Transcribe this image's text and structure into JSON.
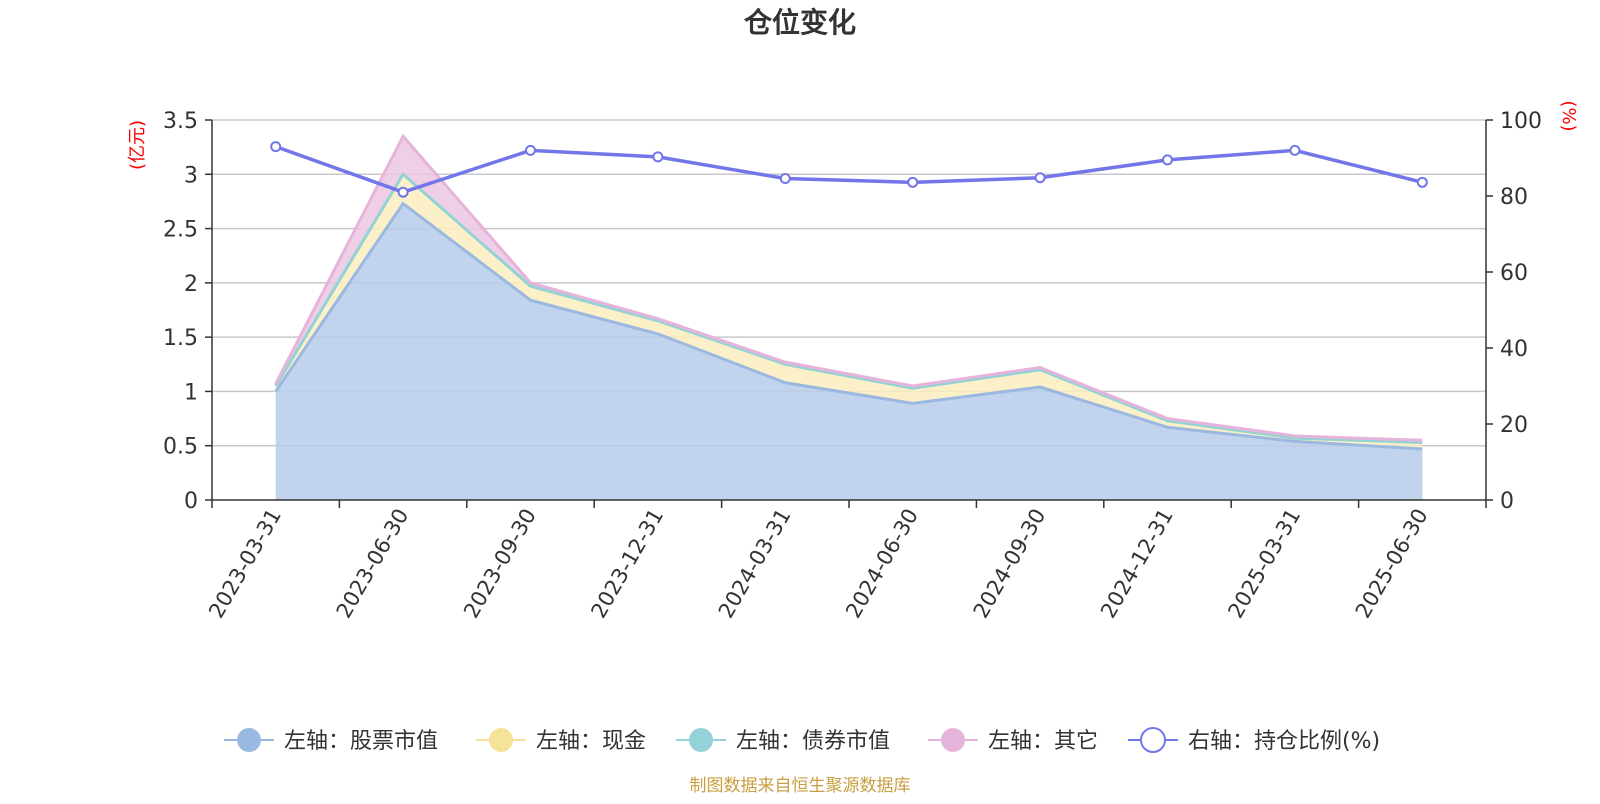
{
  "chart_data": {
    "type": "area",
    "title": "仓位变化",
    "categories": [
      "2023-03-31",
      "2023-06-30",
      "2023-09-30",
      "2023-12-31",
      "2024-03-31",
      "2024-06-30",
      "2024-09-30",
      "2024-12-31",
      "2025-03-31",
      "2025-06-30"
    ],
    "left_axis": {
      "unit": "(亿元)",
      "range": [
        0,
        3.5
      ],
      "ticks": [
        "0",
        "0.5",
        "1",
        "1.5",
        "2",
        "2.5",
        "3",
        "3.5"
      ]
    },
    "right_axis": {
      "unit": "(%)",
      "range": [
        0,
        100
      ],
      "ticks": [
        "0",
        "20",
        "40",
        "60",
        "80",
        "100"
      ]
    },
    "stacked": true,
    "series": [
      {
        "name": "左轴：股票市值",
        "axis": "left",
        "color": "#9bb8e0",
        "fill": "#b7cdea",
        "values": [
          1.0,
          2.73,
          1.84,
          1.53,
          1.08,
          0.89,
          1.04,
          0.67,
          0.54,
          0.47
        ]
      },
      {
        "name": "左轴：现金",
        "axis": "left",
        "color": "#f5e39a",
        "fill": "#fbedbf",
        "values": [
          0.05,
          0.27,
          0.13,
          0.12,
          0.17,
          0.14,
          0.16,
          0.06,
          0.03,
          0.06
        ]
      },
      {
        "name": "左轴：债券市值",
        "axis": "left",
        "color": "#93d2d6",
        "fill": "#b7e2e4",
        "values": [
          0,
          0,
          0,
          0,
          0,
          0,
          0,
          0,
          0,
          0
        ]
      },
      {
        "name": "左轴：其它",
        "axis": "left",
        "color": "#e6b4da",
        "fill": "#ecc5e4",
        "values": [
          0.02,
          0.35,
          0.03,
          0.02,
          0.02,
          0.02,
          0.02,
          0.02,
          0.02,
          0.02
        ]
      },
      {
        "name": "右轴：持仓比例(%)",
        "axis": "right",
        "color": "#7376e8",
        "type": "line",
        "values": [
          93.0,
          81.0,
          92.0,
          90.3,
          84.6,
          83.6,
          84.8,
          89.5,
          92.0,
          83.6
        ]
      }
    ],
    "grid": true,
    "legend_position": "bottom"
  },
  "source_text": "制图数据来自恒生聚源数据库"
}
